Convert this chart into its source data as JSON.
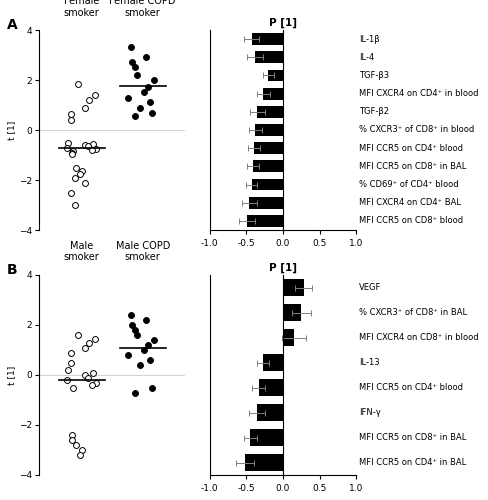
{
  "panel_A": {
    "title_smoker": "Female\nsmoker",
    "title_copd": "Female COPD\nsmoker",
    "ylabel": "t [1]",
    "ylim": [
      -4,
      4
    ],
    "mean_smoker": -0.7,
    "mean_copd": 1.75,
    "smoker_dots": [
      1.85,
      1.4,
      1.2,
      0.9,
      0.65,
      0.4,
      -0.5,
      -0.55,
      -0.6,
      -0.65,
      -0.7,
      -0.75,
      -0.8,
      -0.85,
      -0.9,
      -0.95,
      -1.5,
      -1.65,
      -1.75,
      -1.9,
      -2.1,
      -2.5,
      -3.0
    ],
    "copd_dots": [
      3.3,
      2.9,
      2.7,
      2.5,
      2.2,
      2.0,
      1.7,
      1.5,
      1.3,
      1.1,
      0.9,
      0.7,
      0.55
    ],
    "bar_title": "P [1]",
    "bar_xlim": [
      -1.0,
      1.0
    ],
    "bar_xticks": [
      -1.0,
      -0.5,
      0.0,
      0.5,
      1.0
    ],
    "bar_xticklabels": [
      "-1.0",
      "-0.5",
      "0.0",
      "0.5",
      "1.0"
    ],
    "bar_labels": [
      "IL-1β",
      "IL-4",
      "TGF-β3",
      "MFI CXCR4 on CD4⁺ in blood",
      "TGF-β2",
      "% CXCR3⁺ of CD8⁺ in blood",
      "MFI CCR5 on CD4⁺ blood",
      "MFI CCR5 on CD8⁺ in BAL",
      "% CD69⁺ of CD4⁺ blood",
      "MFI CXCR4 on CD4⁺ BAL",
      "MFI CCR5 on CD8⁺ blood"
    ],
    "bar_values": [
      -0.43,
      -0.38,
      -0.2,
      -0.27,
      -0.35,
      -0.38,
      -0.4,
      -0.41,
      -0.43,
      -0.46,
      -0.49
    ],
    "bar_errors": [
      0.1,
      0.11,
      0.07,
      0.09,
      0.1,
      0.09,
      0.08,
      0.08,
      0.08,
      0.1,
      0.11
    ]
  },
  "panel_B": {
    "title_smoker": "Male\nsmoker",
    "title_copd": "Male COPD\nsmoker",
    "ylabel": "t [1]",
    "ylim": [
      -4,
      4
    ],
    "mean_smoker": -0.2,
    "mean_copd": 1.1,
    "smoker_dots": [
      1.6,
      1.45,
      1.3,
      1.1,
      0.9,
      0.5,
      0.2,
      0.1,
      0.0,
      -0.1,
      -0.2,
      -0.3,
      -0.4,
      -0.5,
      -2.4,
      -2.6,
      -2.8,
      -3.0,
      -3.2
    ],
    "copd_dots": [
      2.4,
      2.2,
      2.0,
      1.8,
      1.6,
      1.4,
      1.2,
      1.0,
      0.8,
      0.6,
      0.4,
      -0.5,
      -0.7
    ],
    "bar_title": "P [1]",
    "bar_xlim": [
      -1.0,
      1.0
    ],
    "bar_xticks": [
      -1.0,
      -0.5,
      0.0,
      0.5,
      1.0
    ],
    "bar_xticklabels": [
      "-1.0",
      "-0.5",
      "0.0",
      "0.5",
      "1.0"
    ],
    "bar_labels": [
      "VEGF",
      "% CXCR3⁺ of CD8⁺ in BAL",
      "MFI CXCR4 on CD8⁺ in blood",
      "IL-13",
      "MFI CCR5 on CD4⁺ blood",
      "IFN-γ",
      "MFI CCR5 on CD8⁺ in BAL",
      "MFI CCR5 on CD4⁺ in BAL"
    ],
    "bar_values": [
      0.28,
      0.25,
      0.15,
      -0.27,
      -0.33,
      -0.35,
      -0.45,
      -0.52
    ],
    "bar_errors": [
      0.11,
      0.13,
      0.17,
      0.08,
      0.09,
      0.11,
      0.09,
      0.12
    ]
  },
  "bar_color": "#000000",
  "font_size_label": 6.5,
  "font_size_bar_label": 6.0,
  "font_size_title": 7.5,
  "font_size_panel": 10
}
